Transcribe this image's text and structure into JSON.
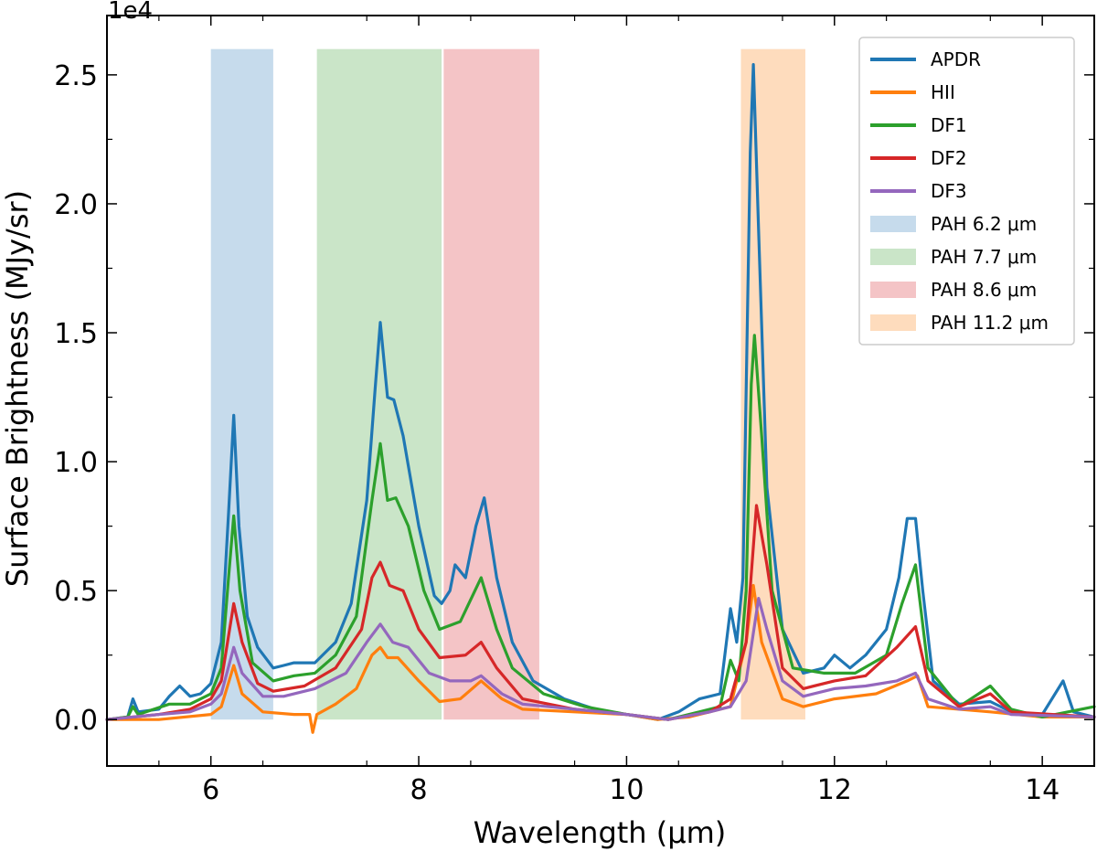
{
  "chart_data": {
    "type": "line",
    "title": "",
    "xlabel": "Wavelength (μm)",
    "ylabel": "Surface Brightness (MJy/sr)",
    "y_multiplier": "1e4",
    "xlim": [
      5.0,
      14.5
    ],
    "ylim": [
      -0.18,
      2.73
    ],
    "x_ticks": [
      6,
      8,
      10,
      12,
      14
    ],
    "x_tick_labels": [
      "6",
      "8",
      "10",
      "12",
      "14"
    ],
    "y_ticks": [
      0.0,
      0.5,
      1.0,
      1.5,
      2.0,
      2.5
    ],
    "y_tick_labels": [
      "0.0",
      "0.5",
      "1.0",
      "1.5",
      "2.0",
      "2.5"
    ],
    "grid": false,
    "legend_position": "top-right",
    "bands": [
      {
        "name": "PAH 6.2 μm",
        "x0": 6.0,
        "x1": 6.6,
        "y_top": 2.6,
        "color": "#c6dbec"
      },
      {
        "name": "PAH 7.7 μm",
        "x0": 7.02,
        "x1": 8.22,
        "y_top": 2.6,
        "color": "#cae5c8"
      },
      {
        "name": "PAH 8.6 μm",
        "x0": 8.24,
        "x1": 9.16,
        "y_top": 2.6,
        "color": "#f4c4c6"
      },
      {
        "name": "PAH 11.2 μm",
        "x0": 11.1,
        "x1": 11.72,
        "y_top": 2.6,
        "color": "#fedcbd"
      }
    ],
    "series": [
      {
        "name": "APDR",
        "color": "#1f77b4",
        "points": [
          [
            5.0,
            0.0
          ],
          [
            5.2,
            0.01
          ],
          [
            5.25,
            0.08
          ],
          [
            5.3,
            0.03
          ],
          [
            5.5,
            0.04
          ],
          [
            5.6,
            0.09
          ],
          [
            5.7,
            0.13
          ],
          [
            5.8,
            0.09
          ],
          [
            5.9,
            0.1
          ],
          [
            6.0,
            0.14
          ],
          [
            6.1,
            0.3
          ],
          [
            6.17,
            0.8
          ],
          [
            6.22,
            1.18
          ],
          [
            6.27,
            0.75
          ],
          [
            6.35,
            0.4
          ],
          [
            6.45,
            0.28
          ],
          [
            6.6,
            0.2
          ],
          [
            6.7,
            0.21
          ],
          [
            6.8,
            0.22
          ],
          [
            7.0,
            0.22
          ],
          [
            7.2,
            0.3
          ],
          [
            7.35,
            0.45
          ],
          [
            7.5,
            0.85
          ],
          [
            7.58,
            1.28
          ],
          [
            7.63,
            1.54
          ],
          [
            7.7,
            1.25
          ],
          [
            7.76,
            1.24
          ],
          [
            7.85,
            1.1
          ],
          [
            8.0,
            0.75
          ],
          [
            8.15,
            0.48
          ],
          [
            8.22,
            0.45
          ],
          [
            8.3,
            0.5
          ],
          [
            8.35,
            0.6
          ],
          [
            8.45,
            0.55
          ],
          [
            8.55,
            0.75
          ],
          [
            8.63,
            0.86
          ],
          [
            8.75,
            0.55
          ],
          [
            8.9,
            0.3
          ],
          [
            9.1,
            0.15
          ],
          [
            9.4,
            0.08
          ],
          [
            9.7,
            0.04
          ],
          [
            10.0,
            0.02
          ],
          [
            10.3,
            0.0
          ],
          [
            10.5,
            0.03
          ],
          [
            10.7,
            0.08
          ],
          [
            10.9,
            0.1
          ],
          [
            11.0,
            0.43
          ],
          [
            11.06,
            0.3
          ],
          [
            11.12,
            0.55
          ],
          [
            11.19,
            2.2
          ],
          [
            11.22,
            2.54
          ],
          [
            11.27,
            1.9
          ],
          [
            11.35,
            0.9
          ],
          [
            11.5,
            0.35
          ],
          [
            11.7,
            0.18
          ],
          [
            11.9,
            0.2
          ],
          [
            12.0,
            0.25
          ],
          [
            12.15,
            0.2
          ],
          [
            12.3,
            0.25
          ],
          [
            12.5,
            0.35
          ],
          [
            12.62,
            0.55
          ],
          [
            12.7,
            0.78
          ],
          [
            12.78,
            0.78
          ],
          [
            12.85,
            0.5
          ],
          [
            12.95,
            0.15
          ],
          [
            13.2,
            0.06
          ],
          [
            13.5,
            0.07
          ],
          [
            13.7,
            0.03
          ],
          [
            14.0,
            0.02
          ],
          [
            14.2,
            0.15
          ],
          [
            14.3,
            0.03
          ],
          [
            14.5,
            0.01
          ]
        ]
      },
      {
        "name": "HII",
        "color": "#ff7f0e",
        "points": [
          [
            5.0,
            0.0
          ],
          [
            5.5,
            0.0
          ],
          [
            6.0,
            0.02
          ],
          [
            6.1,
            0.05
          ],
          [
            6.22,
            0.21
          ],
          [
            6.3,
            0.1
          ],
          [
            6.5,
            0.03
          ],
          [
            6.8,
            0.02
          ],
          [
            6.95,
            0.02
          ],
          [
            6.98,
            -0.05
          ],
          [
            7.02,
            0.02
          ],
          [
            7.2,
            0.06
          ],
          [
            7.4,
            0.12
          ],
          [
            7.55,
            0.25
          ],
          [
            7.63,
            0.28
          ],
          [
            7.7,
            0.24
          ],
          [
            7.8,
            0.24
          ],
          [
            8.0,
            0.15
          ],
          [
            8.2,
            0.07
          ],
          [
            8.4,
            0.08
          ],
          [
            8.6,
            0.15
          ],
          [
            8.8,
            0.08
          ],
          [
            9.0,
            0.04
          ],
          [
            9.5,
            0.03
          ],
          [
            10.0,
            0.02
          ],
          [
            10.3,
            0.0
          ],
          [
            10.6,
            0.01
          ],
          [
            11.0,
            0.05
          ],
          [
            11.15,
            0.3
          ],
          [
            11.22,
            0.52
          ],
          [
            11.3,
            0.3
          ],
          [
            11.5,
            0.08
          ],
          [
            11.7,
            0.05
          ],
          [
            12.0,
            0.08
          ],
          [
            12.4,
            0.1
          ],
          [
            12.7,
            0.15
          ],
          [
            12.8,
            0.17
          ],
          [
            12.9,
            0.05
          ],
          [
            13.5,
            0.03
          ],
          [
            14.0,
            0.01
          ],
          [
            14.5,
            0.01
          ]
        ]
      },
      {
        "name": "DF1",
        "color": "#2ca02c",
        "points": [
          [
            5.0,
            0.0
          ],
          [
            5.2,
            0.01
          ],
          [
            5.25,
            0.05
          ],
          [
            5.3,
            0.02
          ],
          [
            5.6,
            0.06
          ],
          [
            5.8,
            0.06
          ],
          [
            6.0,
            0.1
          ],
          [
            6.1,
            0.2
          ],
          [
            6.17,
            0.55
          ],
          [
            6.22,
            0.79
          ],
          [
            6.28,
            0.5
          ],
          [
            6.4,
            0.22
          ],
          [
            6.6,
            0.15
          ],
          [
            6.8,
            0.17
          ],
          [
            7.0,
            0.18
          ],
          [
            7.2,
            0.25
          ],
          [
            7.4,
            0.4
          ],
          [
            7.55,
            0.85
          ],
          [
            7.63,
            1.07
          ],
          [
            7.7,
            0.85
          ],
          [
            7.78,
            0.86
          ],
          [
            7.9,
            0.75
          ],
          [
            8.05,
            0.5
          ],
          [
            8.2,
            0.35
          ],
          [
            8.4,
            0.38
          ],
          [
            8.6,
            0.55
          ],
          [
            8.75,
            0.35
          ],
          [
            8.9,
            0.2
          ],
          [
            9.2,
            0.1
          ],
          [
            9.6,
            0.05
          ],
          [
            10.0,
            0.02
          ],
          [
            10.4,
            0.0
          ],
          [
            10.7,
            0.03
          ],
          [
            10.9,
            0.05
          ],
          [
            11.0,
            0.23
          ],
          [
            11.08,
            0.15
          ],
          [
            11.15,
            0.5
          ],
          [
            11.2,
            1.3
          ],
          [
            11.23,
            1.49
          ],
          [
            11.3,
            1.1
          ],
          [
            11.4,
            0.5
          ],
          [
            11.6,
            0.2
          ],
          [
            11.9,
            0.18
          ],
          [
            12.2,
            0.18
          ],
          [
            12.5,
            0.25
          ],
          [
            12.65,
            0.45
          ],
          [
            12.78,
            0.6
          ],
          [
            12.9,
            0.2
          ],
          [
            13.2,
            0.05
          ],
          [
            13.5,
            0.13
          ],
          [
            13.7,
            0.04
          ],
          [
            14.0,
            0.01
          ],
          [
            14.5,
            0.05
          ]
        ]
      },
      {
        "name": "DF2",
        "color": "#d62728",
        "points": [
          [
            5.0,
            0.0
          ],
          [
            5.5,
            0.02
          ],
          [
            5.8,
            0.04
          ],
          [
            6.0,
            0.08
          ],
          [
            6.1,
            0.15
          ],
          [
            6.22,
            0.45
          ],
          [
            6.3,
            0.3
          ],
          [
            6.45,
            0.14
          ],
          [
            6.6,
            0.11
          ],
          [
            6.9,
            0.13
          ],
          [
            7.2,
            0.2
          ],
          [
            7.45,
            0.35
          ],
          [
            7.55,
            0.55
          ],
          [
            7.63,
            0.61
          ],
          [
            7.72,
            0.52
          ],
          [
            7.85,
            0.5
          ],
          [
            8.0,
            0.35
          ],
          [
            8.2,
            0.24
          ],
          [
            8.45,
            0.25
          ],
          [
            8.6,
            0.3
          ],
          [
            8.75,
            0.2
          ],
          [
            9.0,
            0.08
          ],
          [
            9.5,
            0.04
          ],
          [
            10.0,
            0.02
          ],
          [
            10.4,
            0.0
          ],
          [
            10.8,
            0.03
          ],
          [
            11.0,
            0.08
          ],
          [
            11.15,
            0.3
          ],
          [
            11.25,
            0.83
          ],
          [
            11.35,
            0.6
          ],
          [
            11.5,
            0.2
          ],
          [
            11.7,
            0.12
          ],
          [
            12.0,
            0.15
          ],
          [
            12.3,
            0.17
          ],
          [
            12.6,
            0.28
          ],
          [
            12.78,
            0.36
          ],
          [
            12.9,
            0.15
          ],
          [
            13.2,
            0.05
          ],
          [
            13.5,
            0.1
          ],
          [
            13.7,
            0.03
          ],
          [
            14.5,
            0.01
          ]
        ]
      },
      {
        "name": "DF3",
        "color": "#9467bd",
        "points": [
          [
            5.0,
            0.0
          ],
          [
            5.5,
            0.02
          ],
          [
            5.8,
            0.03
          ],
          [
            6.0,
            0.06
          ],
          [
            6.1,
            0.1
          ],
          [
            6.22,
            0.28
          ],
          [
            6.3,
            0.18
          ],
          [
            6.5,
            0.09
          ],
          [
            6.7,
            0.09
          ],
          [
            7.0,
            0.12
          ],
          [
            7.3,
            0.18
          ],
          [
            7.5,
            0.3
          ],
          [
            7.63,
            0.37
          ],
          [
            7.75,
            0.3
          ],
          [
            7.9,
            0.28
          ],
          [
            8.1,
            0.18
          ],
          [
            8.3,
            0.15
          ],
          [
            8.5,
            0.15
          ],
          [
            8.6,
            0.17
          ],
          [
            8.8,
            0.1
          ],
          [
            9.0,
            0.06
          ],
          [
            9.5,
            0.04
          ],
          [
            10.0,
            0.02
          ],
          [
            10.4,
            0.0
          ],
          [
            10.8,
            0.03
          ],
          [
            11.0,
            0.05
          ],
          [
            11.15,
            0.15
          ],
          [
            11.27,
            0.47
          ],
          [
            11.35,
            0.35
          ],
          [
            11.5,
            0.15
          ],
          [
            11.7,
            0.09
          ],
          [
            12.0,
            0.12
          ],
          [
            12.3,
            0.13
          ],
          [
            12.6,
            0.15
          ],
          [
            12.78,
            0.18
          ],
          [
            12.9,
            0.08
          ],
          [
            13.2,
            0.04
          ],
          [
            13.5,
            0.05
          ],
          [
            13.7,
            0.02
          ],
          [
            14.5,
            0.01
          ]
        ]
      }
    ]
  }
}
